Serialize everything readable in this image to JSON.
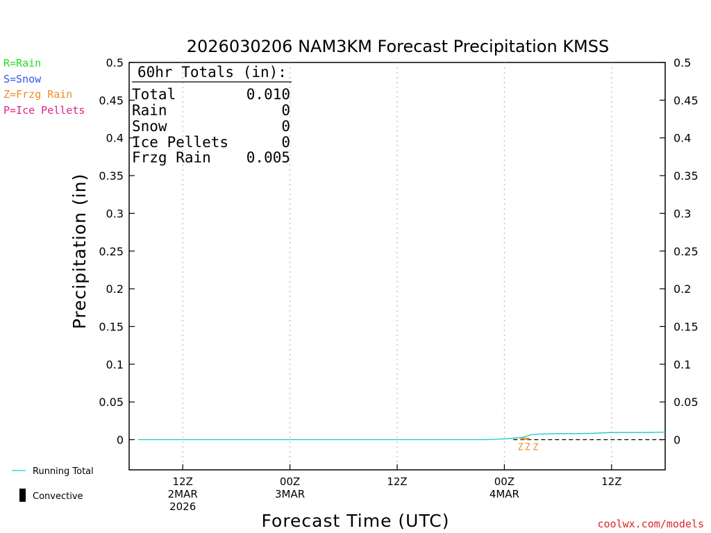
{
  "title": "2026030206 NAM3KM Forecast Precipitation KMSS",
  "legend_types": [
    {
      "label": "R=Rain",
      "color": "#22dd22"
    },
    {
      "label": "S=Snow",
      "color": "#3355ee"
    },
    {
      "label": "Z=Frzg Rain",
      "color": "#f08a28"
    },
    {
      "label": "P=Ice Pellets",
      "color": "#e0208a"
    }
  ],
  "legend_lines": {
    "running_total": {
      "label": "Running Total",
      "color": "#18c7c7"
    },
    "convective": {
      "label": "Convective",
      "color": "#000000"
    }
  },
  "totals_box": {
    "heading": "60hr Totals (in):",
    "rows": [
      {
        "label": "Total",
        "value": "0.010"
      },
      {
        "label": "Rain",
        "value": "0"
      },
      {
        "label": "Snow",
        "value": "0"
      },
      {
        "label": "Ice Pellets",
        "value": "0"
      },
      {
        "label": "Frzg Rain",
        "value": "0.005"
      }
    ]
  },
  "credit": "coolwx.com/models",
  "chart_data": {
    "type": "line",
    "title": "2026030206 NAM3KM Forecast Precipitation KMSS",
    "xlabel": "Forecast Time (UTC)",
    "ylabel": "Precipitation (in)",
    "ylim": [
      -0.04,
      0.5
    ],
    "yticks": [
      0,
      0.05,
      0.1,
      0.15,
      0.2,
      0.25,
      0.3,
      0.35,
      0.4,
      0.45,
      0.5
    ],
    "ytick_labels": [
      "0",
      "0.05",
      "0.1",
      "0.15",
      "0.2",
      "0.25",
      "0.3",
      "0.35",
      "0.4",
      "0.45",
      "0.5"
    ],
    "xlim_hours": [
      0,
      60
    ],
    "xticks": [
      {
        "hour": 6,
        "lines": [
          "12Z",
          "2MAR",
          "2026"
        ]
      },
      {
        "hour": 18,
        "lines": [
          "00Z",
          "3MAR"
        ]
      },
      {
        "hour": 30,
        "lines": [
          "12Z"
        ]
      },
      {
        "hour": 42,
        "lines": [
          "00Z",
          "4MAR"
        ]
      },
      {
        "hour": 54,
        "lines": [
          "12Z"
        ]
      }
    ],
    "grid": "vertical dotted at x ticks",
    "series": [
      {
        "name": "Running Total",
        "color": "#18c7c7",
        "x": [
          1,
          10,
          20,
          30,
          40,
          41,
          42,
          43,
          44,
          45,
          46,
          48,
          50,
          52,
          54,
          56,
          58,
          60
        ],
        "values": [
          0,
          0,
          0,
          0,
          0,
          0.0005,
          0.001,
          0.002,
          0.003,
          0.0065,
          0.0075,
          0.008,
          0.008,
          0.0085,
          0.0095,
          0.0095,
          0.0095,
          0.01
        ]
      }
    ],
    "precip_type_marks": [
      {
        "type": "Z",
        "x_hours": [
          43.8,
          44.6,
          45.5
        ],
        "color": "#f08a28"
      }
    ],
    "bars": [
      {
        "x": 44.3,
        "width_hours": 1.0,
        "value": 0.0025,
        "color": "#f08a28"
      }
    ],
    "zero_dashed_segment_hours": [
      43,
      60
    ]
  }
}
